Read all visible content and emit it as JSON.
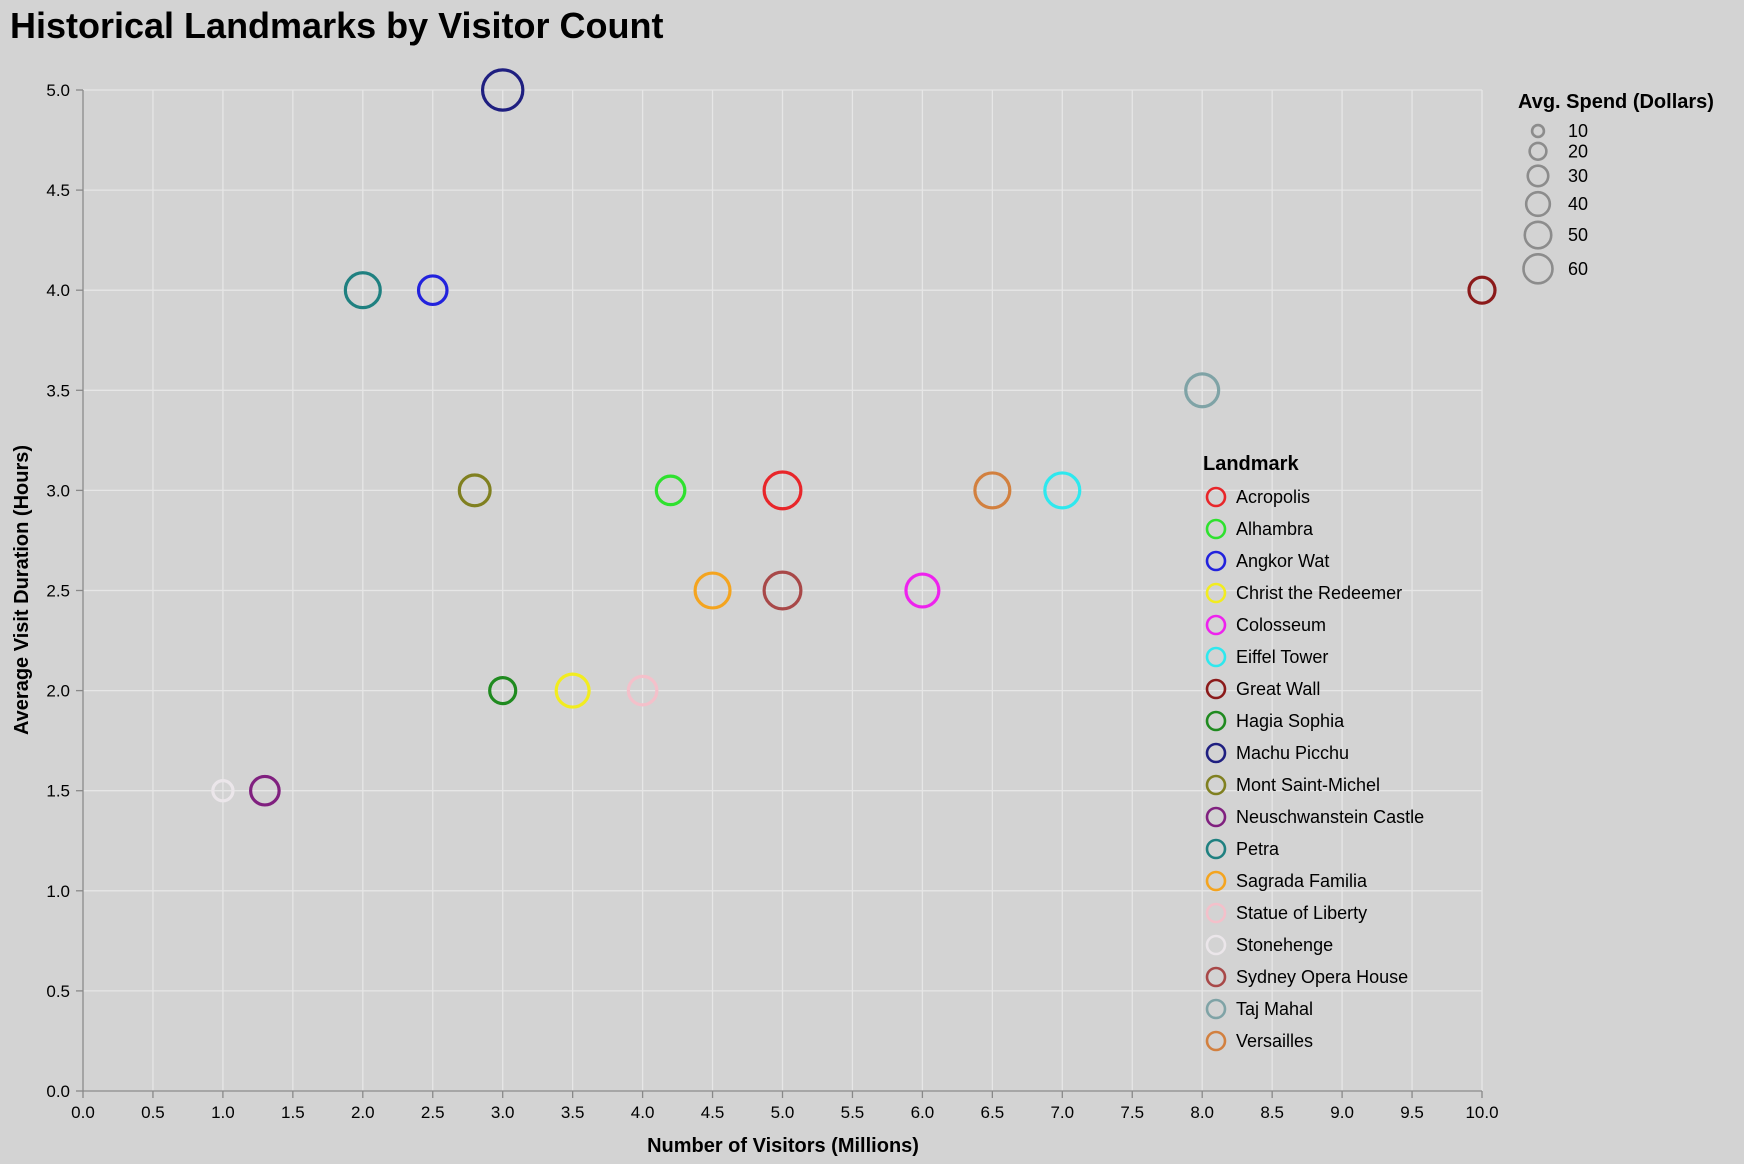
{
  "chart_data": {
    "type": "scatter",
    "title": "Historical Landmarks by Visitor Count",
    "xlabel": "Number of Visitors (Millions)",
    "ylabel": "Average Visit Duration (Hours)",
    "xlim": [
      0,
      10
    ],
    "ylim": [
      0,
      5
    ],
    "x_ticks": [
      "0.0",
      "0.5",
      "1.0",
      "1.5",
      "2.0",
      "2.5",
      "3.0",
      "3.5",
      "4.0",
      "4.5",
      "5.0",
      "5.5",
      "6.0",
      "6.5",
      "7.0",
      "7.5",
      "8.0",
      "8.5",
      "9.0",
      "9.5",
      "10.0"
    ],
    "y_ticks": [
      "0.0",
      "0.5",
      "1.0",
      "1.5",
      "2.0",
      "2.5",
      "3.0",
      "3.5",
      "4.0",
      "4.5",
      "5.0"
    ],
    "grid": true,
    "size_legend": {
      "title": "Avg. Spend (Dollars)",
      "values": [
        10,
        20,
        30,
        40,
        50,
        60
      ],
      "labels": [
        "10",
        "20",
        "30",
        "40",
        "50",
        "60"
      ]
    },
    "color_legend": {
      "title": "Landmark",
      "placement": "right"
    },
    "points": [
      {
        "name": "Acropolis",
        "x": 5.0,
        "y": 3.0,
        "spend": 50,
        "color": "#e8262a"
      },
      {
        "name": "Alhambra",
        "x": 4.2,
        "y": 3.0,
        "spend": 30,
        "color": "#2ee12e"
      },
      {
        "name": "Angkor Wat",
        "x": 2.5,
        "y": 4.0,
        "spend": 30,
        "color": "#2222dd"
      },
      {
        "name": "Christ the Redeemer",
        "x": 3.5,
        "y": 2.0,
        "spend": 40,
        "color": "#f2ec1f"
      },
      {
        "name": "Colosseum",
        "x": 6.0,
        "y": 2.5,
        "spend": 40,
        "color": "#ee22ee"
      },
      {
        "name": "Eiffel Tower",
        "x": 7.0,
        "y": 3.0,
        "spend": 45,
        "color": "#2ee8ee"
      },
      {
        "name": "Great Wall",
        "x": 10.0,
        "y": 4.0,
        "spend": 25,
        "color": "#8b1a1a"
      },
      {
        "name": "Hagia Sophia",
        "x": 3.0,
        "y": 2.0,
        "spend": 25,
        "color": "#1f8a1f"
      },
      {
        "name": "Machu Picchu",
        "x": 3.0,
        "y": 5.0,
        "spend": 60,
        "color": "#1f1f80"
      },
      {
        "name": "Mont Saint-Michel",
        "x": 2.8,
        "y": 3.0,
        "spend": 35,
        "color": "#808020"
      },
      {
        "name": "Neuschwanstein Castle",
        "x": 1.3,
        "y": 1.5,
        "spend": 30,
        "color": "#80207f"
      },
      {
        "name": "Petra",
        "x": 2.0,
        "y": 4.0,
        "spend": 45,
        "color": "#1f8080"
      },
      {
        "name": "Sagrada Familia",
        "x": 4.5,
        "y": 2.5,
        "spend": 45,
        "color": "#f4a41f"
      },
      {
        "name": "Statue of Liberty",
        "x": 4.0,
        "y": 2.0,
        "spend": 30,
        "color": "#f4c0ca"
      },
      {
        "name": "Stonehenge",
        "x": 1.0,
        "y": 1.5,
        "spend": 15,
        "color": "#ebe6ea"
      },
      {
        "name": "Sydney Opera House",
        "x": 5.0,
        "y": 2.5,
        "spend": 50,
        "color": "#a84848"
      },
      {
        "name": "Taj Mahal",
        "x": 8.0,
        "y": 3.5,
        "spend": 40,
        "color": "#7fa3a6"
      },
      {
        "name": "Versailles",
        "x": 6.5,
        "y": 3.0,
        "spend": 45,
        "color": "#d2803f"
      }
    ]
  }
}
